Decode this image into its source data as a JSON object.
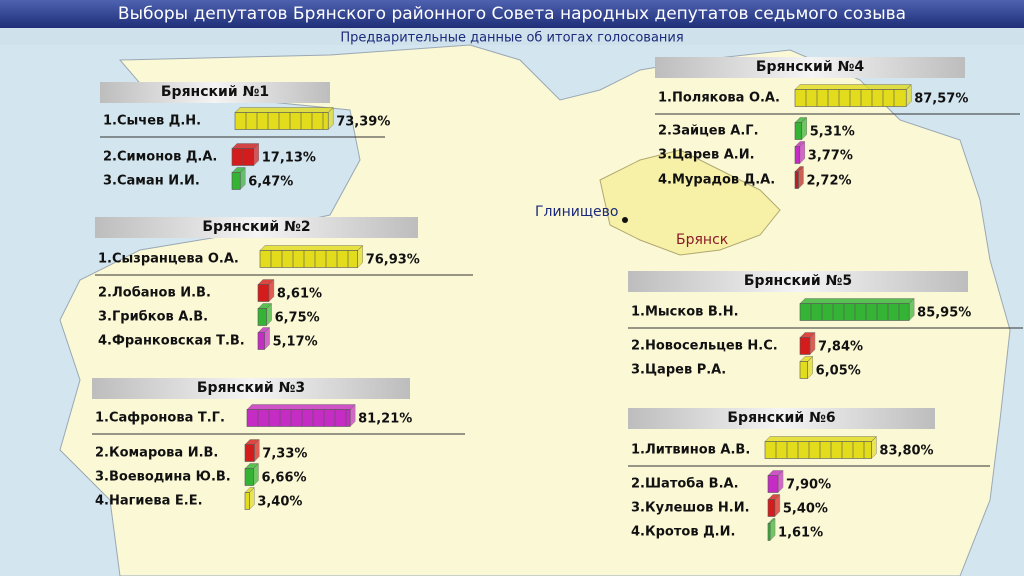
{
  "header": {
    "title": "Выборы депутатов Брянского районного Совета народных депутатов седьмого созыва",
    "subtitle": "Предварительные данные об итогах голосования"
  },
  "map_labels": [
    "Глинищево",
    "Брянск"
  ],
  "chart_data": [
    {
      "type": "bar",
      "title": "Брянский №1",
      "categories": [
        "1.Сычев Д.Н.",
        "2.Симонов Д.А.",
        "3.Саман И.И."
      ],
      "values": [
        73.39,
        17.13,
        6.47
      ],
      "value_labels": [
        "73,39%",
        "17,13%",
        "6,47%"
      ],
      "colors": [
        "#e2dc1c",
        "#d41c1c",
        "#34b334"
      ]
    },
    {
      "type": "bar",
      "title": "Брянский №2",
      "categories": [
        "1.Сызранцева О.А.",
        "2.Лобанов И.В.",
        "3.Грибков А.В.",
        "4.Франковская Т.В."
      ],
      "values": [
        76.93,
        8.61,
        6.75,
        5.17
      ],
      "value_labels": [
        "76,93%",
        "8,61%",
        "6,75%",
        "5,17%"
      ],
      "colors": [
        "#e2dc1c",
        "#d41c1c",
        "#34b334",
        "#c42cc4"
      ]
    },
    {
      "type": "bar",
      "title": "Брянский №3",
      "categories": [
        "1.Сафронова Т.Г.",
        "2.Комарова И.В.",
        "3.Воеводина Ю.В.",
        "4.Нагиева Е.Е."
      ],
      "values": [
        81.21,
        7.33,
        6.66,
        3.4
      ],
      "value_labels": [
        "81,21%",
        "7,33%",
        "6,66%",
        "3,40%"
      ],
      "colors": [
        "#c42cc4",
        "#d41c1c",
        "#34b334",
        "#e2dc1c"
      ]
    },
    {
      "type": "bar",
      "title": "Брянский №4",
      "categories": [
        "1.Полякова О.А.",
        "2.Зайцев А.Г.",
        "3.Царев А.И.",
        "4.Мурадов Д.А."
      ],
      "values": [
        87.57,
        5.31,
        3.77,
        2.72
      ],
      "value_labels": [
        "87,57%",
        "5,31%",
        "3,77%",
        "2,72%"
      ],
      "colors": [
        "#e2dc1c",
        "#34b334",
        "#c42cc4",
        "#b82020"
      ]
    },
    {
      "type": "bar",
      "title": "Брянский №5",
      "categories": [
        "1.Мысков В.Н.",
        "2.Новосельцев Н.С.",
        "3.Царев Р.А."
      ],
      "values": [
        85.95,
        7.84,
        6.05
      ],
      "value_labels": [
        "85,95%",
        "7,84%",
        "6,05%"
      ],
      "colors": [
        "#34b334",
        "#d41c1c",
        "#e2dc1c"
      ]
    },
    {
      "type": "bar",
      "title": "Брянский №6",
      "categories": [
        "1.Литвинов А.В.",
        "2.Шатоба В.А.",
        "3.Кулешов Н.И.",
        "4.Кротов Д.И."
      ],
      "values": [
        83.8,
        7.9,
        5.4,
        1.61
      ],
      "value_labels": [
        "83,80%",
        "7,90%",
        "5,40%",
        "1,61%"
      ],
      "colors": [
        "#e2dc1c",
        "#c42cc4",
        "#d41c1c",
        "#34b334"
      ]
    }
  ]
}
